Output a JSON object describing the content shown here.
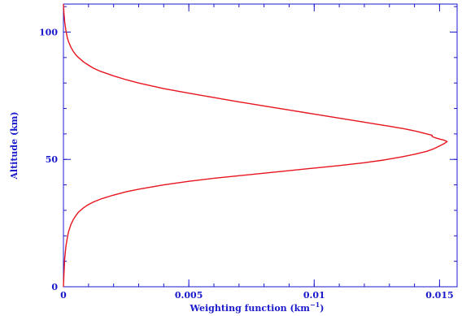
{
  "chart_data": {
    "type": "line",
    "title": "",
    "xlabel": "Weighting function (km",
    "xlabel_unit_exponent": "−1",
    "xlabel_suffix": ")",
    "ylabel": "Altitude (km)",
    "xlim": [
      0,
      0.0157
    ],
    "ylim": [
      0,
      111
    ],
    "x_ticks": [
      {
        "value": 0,
        "label": "0"
      },
      {
        "value": 0.005,
        "label": "0.005"
      },
      {
        "value": 0.01,
        "label": "0.01"
      },
      {
        "value": 0.015,
        "label": "0.015"
      }
    ],
    "y_ticks": [
      {
        "value": 0,
        "label": "0"
      },
      {
        "value": 50,
        "label": "50"
      },
      {
        "value": 100,
        "label": "100"
      }
    ],
    "grid": false,
    "colors": {
      "axis": "#1a1acc",
      "curve": "#e8141e"
    },
    "series": [
      {
        "x": [
          0,
          2e-05,
          5e-05,
          0.0001,
          0.00015,
          0.0002,
          0.0003,
          0.0004,
          0.0005,
          0.0006,
          0.0008,
          0.001,
          0.0012,
          0.0015,
          0.002,
          0.0025,
          0.003,
          0.004,
          0.005,
          0.006,
          0.007,
          0.008,
          0.009,
          0.01,
          0.011,
          0.012,
          0.0128,
          0.0135,
          0.014,
          0.0145,
          0.0148,
          0.015,
          0.0152,
          0.0153,
          0.0152,
          0.015,
          0.0148,
          0.0147,
          0.0147,
          0.0145,
          0.0141,
          0.0136,
          0.013,
          0.012,
          0.011,
          0.01,
          0.009,
          0.008,
          0.007,
          0.006,
          0.005,
          0.004,
          0.003,
          0.0025,
          0.002,
          0.0015,
          0.0012,
          0.001,
          0.0008,
          0.0006,
          0.0005,
          0.0004,
          0.0003,
          0.0002,
          0.00015,
          0.0001,
          5e-05,
          2e-05,
          0
        ],
        "y": [
          0,
          5,
          11,
          16,
          19,
          21.5,
          24.5,
          26.5,
          28,
          29.3,
          31,
          32.3,
          33.3,
          34.5,
          36,
          37.3,
          38.3,
          40,
          41.4,
          42.6,
          43.6,
          44.6,
          45.6,
          46.6,
          47.6,
          48.7,
          49.8,
          51,
          52,
          53.2,
          54.3,
          55.3,
          56.3,
          57,
          57.5,
          58,
          58.6,
          59,
          59.5,
          60,
          61,
          62,
          63,
          64.6,
          66.2,
          67.8,
          69.4,
          71,
          72.6,
          74.3,
          76,
          77.8,
          80,
          81.3,
          82.8,
          84.5,
          85.8,
          87,
          88.3,
          90,
          91,
          92.3,
          94,
          96.3,
          98,
          100.5,
          104,
          107.5,
          111
        ]
      }
    ]
  }
}
